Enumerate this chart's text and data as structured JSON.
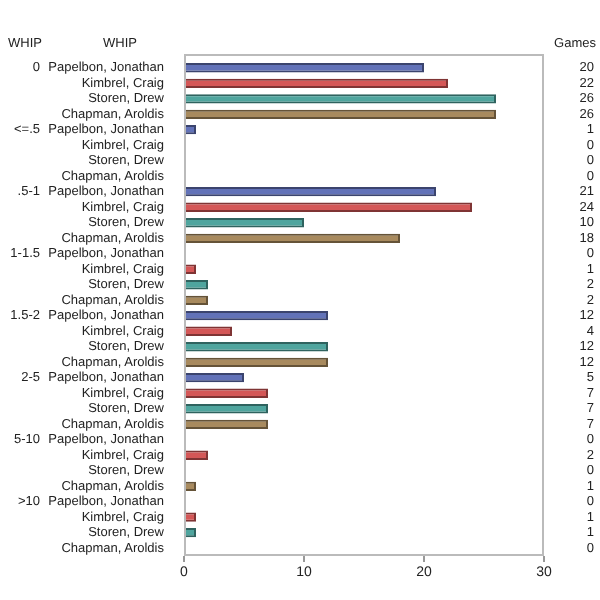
{
  "chart_data": [
    {
      "type": "bar",
      "orientation": "horizontal",
      "title": "0",
      "ylabel": "WHIP",
      "annotations": [
        "WHIP",
        "Games"
      ],
      "categories": [
        "Papelbon, Jonathan",
        "Kimbrel, Craig",
        "Storen, Drew",
        "Chapman, Aroldis"
      ],
      "values": [
        20,
        22,
        26,
        26
      ],
      "colors": [
        "#6272b8",
        "#d45757",
        "#4fa59e",
        "#a88a5e"
      ],
      "xlim": [
        0,
        30
      ],
      "xticks": [
        0,
        10,
        20,
        30
      ],
      "tick_labels": "y",
      "data_labels": true,
      "legend": false,
      "grid": false
    },
    {
      "type": "bar",
      "orientation": "horizontal",
      "title": "<=.5",
      "categories": [
        "Papelbon, Jonathan",
        "Kimbrel, Craig",
        "Storen, Drew",
        "Chapman, Aroldis"
      ],
      "values": [
        1,
        0,
        0,
        0
      ],
      "colors": [
        "#6272b8",
        "#d45757",
        "#4fa59e",
        "#a88a5e"
      ],
      "xlim": [
        0,
        30
      ],
      "xticks": [
        0,
        10,
        20,
        30
      ],
      "tick_labels": "y",
      "data_labels": true,
      "legend": false,
      "grid": false
    },
    {
      "type": "bar",
      "orientation": "horizontal",
      "title": ".5-1",
      "categories": [
        "Papelbon, Jonathan",
        "Kimbrel, Craig",
        "Storen, Drew",
        "Chapman, Aroldis"
      ],
      "values": [
        21,
        24,
        10,
        18
      ],
      "colors": [
        "#6272b8",
        "#d45757",
        "#4fa59e",
        "#a88a5e"
      ],
      "xlim": [
        0,
        30
      ],
      "xticks": [
        0,
        10,
        20,
        30
      ],
      "tick_labels": "y",
      "data_labels": true,
      "legend": false,
      "grid": false
    },
    {
      "type": "bar",
      "orientation": "horizontal",
      "title": "1-1.5",
      "categories": [
        "Papelbon, Jonathan",
        "Kimbrel, Craig",
        "Storen, Drew",
        "Chapman, Aroldis"
      ],
      "values": [
        0,
        1,
        2,
        2
      ],
      "colors": [
        "#6272b8",
        "#d45757",
        "#4fa59e",
        "#a88a5e"
      ],
      "xlim": [
        0,
        30
      ],
      "xticks": [
        0,
        10,
        20,
        30
      ],
      "tick_labels": "y",
      "data_labels": true,
      "legend": false,
      "grid": false
    },
    {
      "type": "bar",
      "orientation": "horizontal",
      "title": "1.5-2",
      "categories": [
        "Papelbon, Jonathan",
        "Kimbrel, Craig",
        "Storen, Drew",
        "Chapman, Aroldis"
      ],
      "values": [
        12,
        4,
        12,
        12
      ],
      "colors": [
        "#6272b8",
        "#d45757",
        "#4fa59e",
        "#a88a5e"
      ],
      "xlim": [
        0,
        30
      ],
      "xticks": [
        0,
        10,
        20,
        30
      ],
      "tick_labels": "y",
      "data_labels": true,
      "legend": false,
      "grid": false
    },
    {
      "type": "bar",
      "orientation": "horizontal",
      "title": "2-5",
      "categories": [
        "Papelbon, Jonathan",
        "Kimbrel, Craig",
        "Storen, Drew",
        "Chapman, Aroldis"
      ],
      "values": [
        5,
        7,
        7,
        7
      ],
      "colors": [
        "#6272b8",
        "#d45757",
        "#4fa59e",
        "#a88a5e"
      ],
      "xlim": [
        0,
        30
      ],
      "xticks": [
        0,
        10,
        20,
        30
      ],
      "tick_labels": "y",
      "data_labels": true,
      "legend": false,
      "grid": false
    },
    {
      "type": "bar",
      "orientation": "horizontal",
      "title": "5-10",
      "categories": [
        "Papelbon, Jonathan",
        "Kimbrel, Craig",
        "Storen, Drew",
        "Chapman, Aroldis"
      ],
      "values": [
        0,
        2,
        0,
        1
      ],
      "colors": [
        "#6272b8",
        "#d45757",
        "#4fa59e",
        "#a88a5e"
      ],
      "xlim": [
        0,
        30
      ],
      "xticks": [
        0,
        10,
        20,
        30
      ],
      "tick_labels": "y",
      "data_labels": true,
      "legend": false,
      "grid": false
    },
    {
      "type": "bar",
      "orientation": "horizontal",
      "title": ">10",
      "categories": [
        "Papelbon, Jonathan",
        "Kimbrel, Craig",
        "Storen, Drew",
        "Chapman, Aroldis"
      ],
      "values": [
        0,
        1,
        1,
        0
      ],
      "colors": [
        "#6272b8",
        "#d45757",
        "#4fa59e",
        "#a88a5e"
      ],
      "xlim": [
        0,
        30
      ],
      "xticks": [
        0,
        10,
        20,
        30
      ],
      "data_labels": true,
      "legend": false,
      "grid": false
    }
  ]
}
